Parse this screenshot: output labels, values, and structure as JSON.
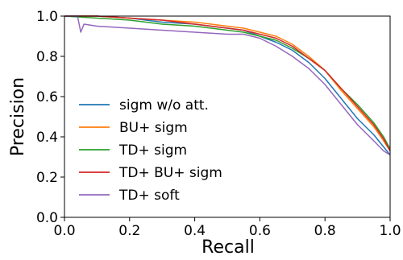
{
  "chart_data": {
    "type": "line",
    "xlabel": "Recall",
    "ylabel": "Precision",
    "xlim": [
      0.0,
      1.0
    ],
    "ylim": [
      0.0,
      1.0
    ],
    "x_ticks": [
      "0.0",
      "0.2",
      "0.4",
      "0.6",
      "0.8",
      "1.0"
    ],
    "y_ticks": [
      "0.0",
      "0.2",
      "0.4",
      "0.6",
      "0.8",
      "1.0"
    ],
    "grid": false,
    "legend_position": "left",
    "series": [
      {
        "name": "sigm w/o att.",
        "color": "#1f77b4",
        "points": [
          [
            0.0,
            1.0
          ],
          [
            0.1,
            1.0
          ],
          [
            0.2,
            0.99
          ],
          [
            0.3,
            0.97
          ],
          [
            0.4,
            0.96
          ],
          [
            0.5,
            0.94
          ],
          [
            0.55,
            0.93
          ],
          [
            0.6,
            0.9
          ],
          [
            0.65,
            0.87
          ],
          [
            0.7,
            0.83
          ],
          [
            0.75,
            0.77
          ],
          [
            0.8,
            0.69
          ],
          [
            0.85,
            0.59
          ],
          [
            0.9,
            0.49
          ],
          [
            0.95,
            0.41
          ],
          [
            0.98,
            0.35
          ],
          [
            1.0,
            0.31
          ]
        ]
      },
      {
        "name": "BU+ sigm",
        "color": "#ff7f0e",
        "points": [
          [
            0.0,
            1.0
          ],
          [
            0.1,
            1.0
          ],
          [
            0.2,
            0.99
          ],
          [
            0.3,
            0.98
          ],
          [
            0.4,
            0.97
          ],
          [
            0.5,
            0.95
          ],
          [
            0.55,
            0.94
          ],
          [
            0.6,
            0.92
          ],
          [
            0.65,
            0.9
          ],
          [
            0.7,
            0.86
          ],
          [
            0.75,
            0.8
          ],
          [
            0.8,
            0.73
          ],
          [
            0.85,
            0.63
          ],
          [
            0.9,
            0.54
          ],
          [
            0.95,
            0.45
          ],
          [
            0.98,
            0.38
          ],
          [
            1.0,
            0.33
          ]
        ]
      },
      {
        "name": "TD+ sigm",
        "color": "#2ca02c",
        "points": [
          [
            0.0,
            1.0
          ],
          [
            0.1,
            0.99
          ],
          [
            0.2,
            0.98
          ],
          [
            0.3,
            0.96
          ],
          [
            0.4,
            0.95
          ],
          [
            0.5,
            0.93
          ],
          [
            0.55,
            0.92
          ],
          [
            0.6,
            0.9
          ],
          [
            0.65,
            0.88
          ],
          [
            0.7,
            0.84
          ],
          [
            0.75,
            0.79
          ],
          [
            0.8,
            0.73
          ],
          [
            0.85,
            0.64
          ],
          [
            0.9,
            0.56
          ],
          [
            0.95,
            0.47
          ],
          [
            0.98,
            0.4
          ],
          [
            1.0,
            0.34
          ]
        ]
      },
      {
        "name": "TD+ BU+ sigm",
        "color": "#d62728",
        "points": [
          [
            0.0,
            1.0
          ],
          [
            0.1,
            1.0
          ],
          [
            0.2,
            0.99
          ],
          [
            0.3,
            0.98
          ],
          [
            0.4,
            0.96
          ],
          [
            0.5,
            0.94
          ],
          [
            0.55,
            0.93
          ],
          [
            0.6,
            0.91
          ],
          [
            0.65,
            0.89
          ],
          [
            0.7,
            0.85
          ],
          [
            0.75,
            0.79
          ],
          [
            0.8,
            0.73
          ],
          [
            0.85,
            0.64
          ],
          [
            0.9,
            0.55
          ],
          [
            0.95,
            0.46
          ],
          [
            0.98,
            0.39
          ],
          [
            1.0,
            0.33
          ]
        ]
      },
      {
        "name": "TD+ soft",
        "color": "#9467bd",
        "points": [
          [
            0.0,
            1.0
          ],
          [
            0.04,
            1.0
          ],
          [
            0.05,
            0.92
          ],
          [
            0.06,
            0.96
          ],
          [
            0.1,
            0.95
          ],
          [
            0.2,
            0.94
          ],
          [
            0.3,
            0.93
          ],
          [
            0.4,
            0.92
          ],
          [
            0.5,
            0.91
          ],
          [
            0.55,
            0.91
          ],
          [
            0.6,
            0.89
          ],
          [
            0.65,
            0.85
          ],
          [
            0.7,
            0.8
          ],
          [
            0.75,
            0.74
          ],
          [
            0.8,
            0.66
          ],
          [
            0.85,
            0.56
          ],
          [
            0.9,
            0.46
          ],
          [
            0.95,
            0.38
          ],
          [
            0.98,
            0.33
          ],
          [
            1.0,
            0.31
          ]
        ]
      }
    ]
  }
}
